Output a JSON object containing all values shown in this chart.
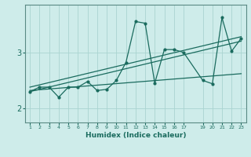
{
  "xlabel": "Humidex (Indice chaleur)",
  "background_color": "#ceecea",
  "grid_color": "#aad4d0",
  "line_color": "#1a6b5e",
  "xlim": [
    0.5,
    23.5
  ],
  "ylim": [
    1.75,
    3.85
  ],
  "yticks": [
    2,
    3
  ],
  "xticks": [
    1,
    2,
    3,
    4,
    5,
    6,
    7,
    8,
    9,
    10,
    11,
    12,
    13,
    14,
    15,
    16,
    17,
    19,
    20,
    21,
    22,
    23
  ],
  "x_data": [
    1,
    2,
    3,
    4,
    5,
    6,
    7,
    8,
    9,
    10,
    11,
    12,
    13,
    14,
    15,
    16,
    17,
    19,
    20,
    21,
    22,
    23
  ],
  "y_main": [
    2.3,
    2.38,
    2.38,
    2.2,
    2.38,
    2.38,
    2.48,
    2.32,
    2.34,
    2.5,
    2.82,
    3.55,
    3.52,
    2.45,
    3.05,
    3.05,
    3.0,
    2.5,
    2.44,
    3.62,
    3.02,
    3.25
  ],
  "trend1_x": [
    1,
    23
  ],
  "trend1_y": [
    2.3,
    3.2
  ],
  "trend2_x": [
    1,
    23
  ],
  "trend2_y": [
    2.32,
    2.62
  ],
  "trend3_x": [
    1,
    23
  ],
  "trend3_y": [
    2.38,
    3.28
  ]
}
